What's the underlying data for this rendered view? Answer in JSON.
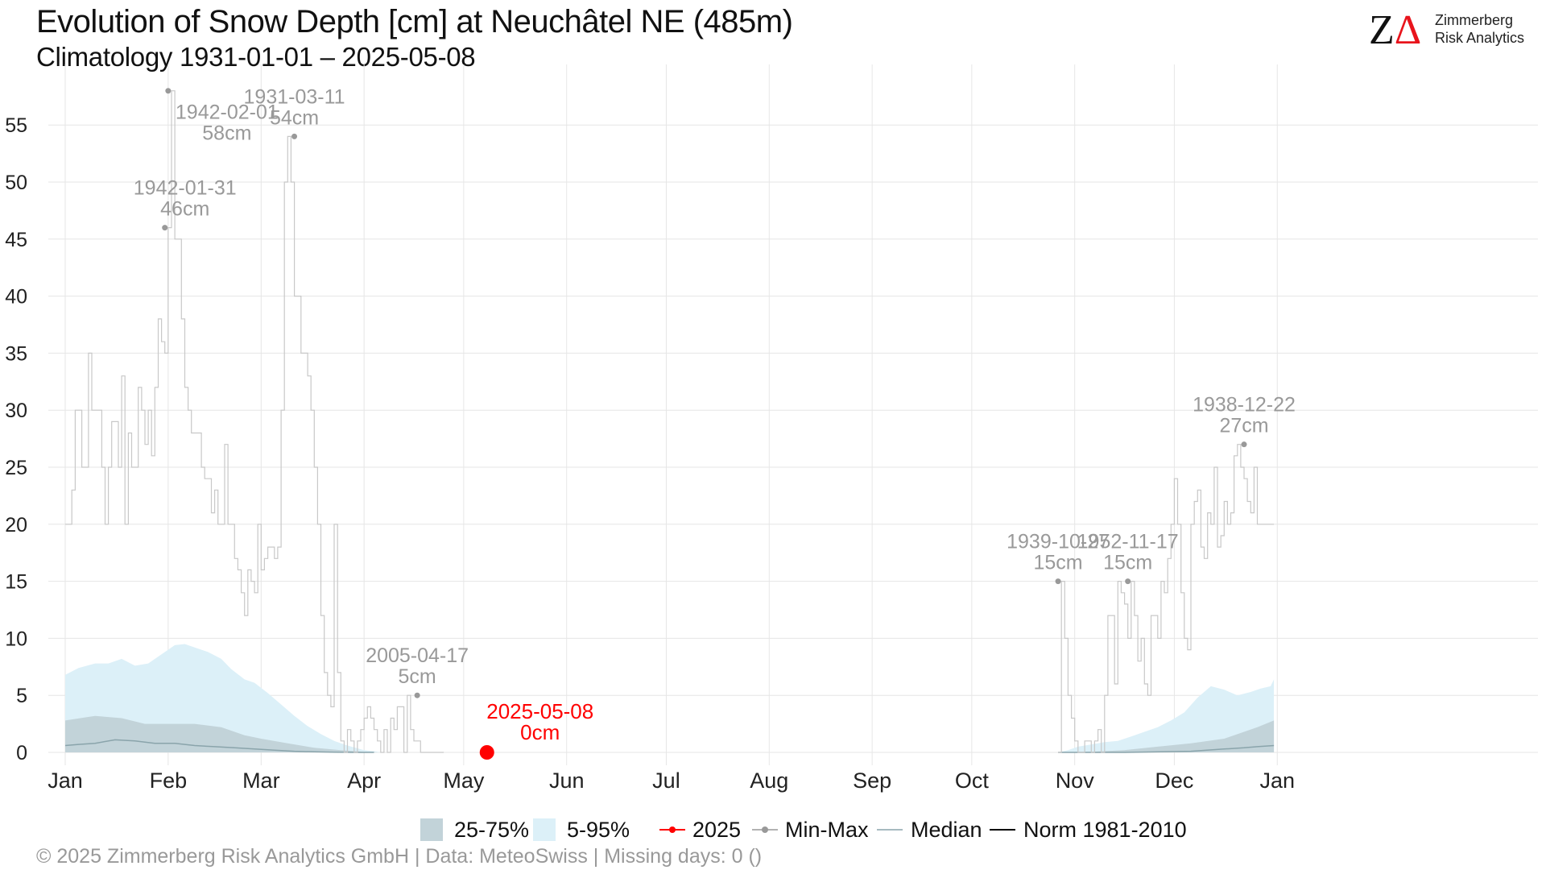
{
  "header": {
    "title": "Evolution of Snow Depth [cm] at Neuchâtel  NE (485m)",
    "subtitle": "Climatology 1931-01-01 – 2025-05-08"
  },
  "logo": {
    "mark_z": "Z",
    "mark_delta": "Δ",
    "line1": "Zimmerberg",
    "line2": "Risk Analytics"
  },
  "legend": {
    "iqr": "25-75%",
    "p5_95": "5-95%",
    "current_year": "2025",
    "minmax": "Min-Max",
    "median": "Median",
    "norm": "Norm 1981-2010"
  },
  "footer": "©  2025 Zimmerberg Risk Analytics GmbH | Data: MeteoSwiss | Missing days: 0 ()",
  "colors": {
    "iqr": "#c2d3d9",
    "p5_95": "#dcf0f8",
    "current": "#ff0000",
    "minmax": "#c8c8c8",
    "median": "#8aa4ab",
    "norm": "#000000",
    "annotation": "#999999",
    "grid": "#e6e6e6",
    "logo_accent": "#e8141c"
  },
  "chart_data": {
    "type": "line",
    "title": "Evolution of Snow Depth [cm] at Neuchâtel  NE (485m)",
    "subtitle": "Climatology 1931-01-01 – 2025-05-08",
    "xlabel": "",
    "ylabel": "",
    "x_unit": "day of year",
    "xlim": [
      1,
      366
    ],
    "ylim": [
      0,
      58
    ],
    "yticks": [
      0,
      5,
      10,
      15,
      20,
      25,
      30,
      35,
      40,
      45,
      50,
      55
    ],
    "xticks": [
      {
        "label": "Jan",
        "day": 1
      },
      {
        "label": "Feb",
        "day": 32
      },
      {
        "label": "Mar",
        "day": 60
      },
      {
        "label": "Apr",
        "day": 91
      },
      {
        "label": "May",
        "day": 121
      },
      {
        "label": "Jun",
        "day": 152
      },
      {
        "label": "Jul",
        "day": 182
      },
      {
        "label": "Aug",
        "day": 213
      },
      {
        "label": "Sep",
        "day": 244
      },
      {
        "label": "Oct",
        "day": 274
      },
      {
        "label": "Nov",
        "day": 305
      },
      {
        "label": "Dec",
        "day": 335
      },
      {
        "label": "Jan",
        "day": 366
      }
    ],
    "grid": true,
    "legend_position": "bottom",
    "series": [
      {
        "name": "Min-Max",
        "kind": "step",
        "x": [
          1,
          3,
          4,
          6,
          8,
          9,
          10,
          12,
          13,
          14,
          15,
          17,
          18,
          19,
          20,
          21,
          22,
          23,
          24,
          25,
          26,
          27,
          28,
          29,
          30,
          31,
          32,
          33,
          34,
          35,
          36,
          37,
          38,
          39,
          40,
          41,
          42,
          43,
          45,
          46,
          47,
          48,
          49,
          50,
          51,
          52,
          53,
          54,
          55,
          56,
          57,
          58,
          59,
          60,
          61,
          62,
          63,
          64,
          65,
          66,
          67,
          68,
          69,
          70,
          72,
          74,
          75,
          76,
          77,
          78,
          79,
          80,
          81,
          82,
          83,
          84,
          85,
          86,
          87,
          88,
          89,
          90,
          91,
          92,
          93,
          94,
          95,
          96,
          97,
          98,
          99,
          100,
          101,
          102,
          103,
          104,
          105,
          106,
          107,
          108,
          109,
          110,
          111,
          112,
          113,
          114,
          115
        ],
        "y": [
          20,
          23,
          30,
          25,
          35,
          30,
          30,
          25,
          20,
          25,
          29,
          25,
          33,
          20,
          28,
          25,
          25,
          32,
          30,
          27,
          30,
          26,
          32,
          38,
          36,
          35,
          46,
          58,
          45,
          45,
          38,
          32,
          30,
          28,
          28,
          28,
          25,
          24,
          21,
          23,
          20,
          20,
          27,
          20,
          20,
          17,
          16,
          14,
          12,
          16,
          15,
          14,
          20,
          16,
          17,
          18,
          18,
          17,
          18,
          30,
          50,
          54,
          50,
          40,
          35,
          33,
          30,
          25,
          20,
          12,
          7,
          5,
          4,
          20,
          7,
          1,
          0,
          2,
          1,
          0,
          1,
          2,
          3,
          4,
          3,
          2,
          1,
          0,
          2,
          0,
          3,
          2,
          4,
          4,
          0,
          5,
          2,
          1,
          1,
          0,
          0,
          0,
          0,
          0,
          0,
          0,
          0
        ]
      },
      {
        "name": "Min-Max",
        "kind": "step",
        "x": [
          300,
          301,
          302,
          303,
          304,
          305,
          306,
          307,
          308,
          309,
          310,
          311,
          312,
          313,
          314,
          315,
          316,
          317,
          318,
          319,
          320,
          321,
          322,
          323,
          324,
          325,
          326,
          327,
          328,
          329,
          330,
          331,
          332,
          333,
          334,
          335,
          336,
          337,
          338,
          339,
          340,
          341,
          342,
          343,
          344,
          345,
          346,
          347,
          348,
          349,
          350,
          351,
          352,
          353,
          354,
          355,
          356,
          357,
          358,
          359,
          360,
          361,
          362,
          363,
          364,
          365
        ],
        "y": [
          0,
          15,
          10,
          5,
          3,
          1,
          0,
          0,
          1,
          1,
          0,
          1,
          2,
          0,
          5,
          12,
          12,
          6,
          15,
          14,
          13,
          10,
          15,
          12,
          8,
          10,
          6,
          5,
          12,
          12,
          10,
          15,
          14,
          17,
          20,
          24,
          20,
          14,
          10,
          9,
          20,
          22,
          23,
          18,
          17,
          21,
          20,
          25,
          18,
          19,
          22,
          20,
          21,
          26,
          27,
          25,
          24,
          22,
          21,
          25,
          20,
          20,
          20,
          20,
          20,
          20
        ]
      },
      {
        "name": "25-75%",
        "kind": "band",
        "x": [
          1,
          10,
          18,
          25,
          32,
          40,
          48,
          55,
          60,
          68,
          76,
          84,
          91,
          96,
          300,
          310,
          320,
          330,
          340,
          350,
          360,
          365
        ],
        "lower": [
          0,
          0,
          0,
          0,
          0,
          0,
          0,
          0,
          0,
          0,
          0,
          0,
          0,
          0,
          0,
          0,
          0,
          0,
          0,
          0,
          0,
          0
        ],
        "upper": [
          2.8,
          3.2,
          3.0,
          2.5,
          2.5,
          2.5,
          2.2,
          1.5,
          1.2,
          0.8,
          0.4,
          0.2,
          0.05,
          0,
          0,
          0.05,
          0.2,
          0.5,
          0.8,
          1.2,
          2.2,
          2.8
        ]
      },
      {
        "name": "5-95%",
        "kind": "band",
        "x": [
          1,
          5,
          10,
          14,
          18,
          22,
          26,
          30,
          34,
          37,
          40,
          44,
          48,
          51,
          55,
          58,
          62,
          66,
          70,
          74,
          78,
          82,
          86,
          91,
          94,
          96,
          300,
          303,
          306,
          310,
          314,
          318,
          322,
          326,
          330,
          334,
          338,
          342,
          346,
          350,
          354,
          358,
          361,
          364,
          365
        ],
        "lower": [
          0,
          0,
          0,
          0,
          0,
          0,
          0,
          0,
          0,
          0,
          0,
          0,
          0,
          0,
          0,
          0,
          0,
          0,
          0,
          0,
          0,
          0,
          0,
          0,
          0,
          0,
          0,
          0,
          0,
          0,
          0,
          0,
          0,
          0,
          0,
          0,
          0,
          0,
          0,
          0,
          0,
          0,
          0,
          0,
          0
        ],
        "upper": [
          6.8,
          7.4,
          7.8,
          7.8,
          8.2,
          7.6,
          7.8,
          8.6,
          9.4,
          9.5,
          9.2,
          8.8,
          8.2,
          7.3,
          6.4,
          6.1,
          5.2,
          4.2,
          3.2,
          2.3,
          1.6,
          1.0,
          0.6,
          0.2,
          0.1,
          0,
          0,
          0.2,
          0.5,
          0.7,
          0.9,
          1.0,
          1.4,
          1.8,
          2.2,
          2.8,
          3.5,
          4.8,
          5.8,
          5.5,
          5.0,
          5.3,
          5.6,
          5.8,
          6.4
        ]
      },
      {
        "name": "Median",
        "kind": "line",
        "x": [
          1,
          5,
          10,
          16,
          22,
          28,
          34,
          40,
          46,
          52,
          58,
          64,
          70,
          76,
          82,
          88,
          94,
          300,
          320,
          340,
          350,
          356,
          360,
          365
        ],
        "y": [
          0.6,
          0.7,
          0.8,
          1.1,
          1.0,
          0.8,
          0.8,
          0.6,
          0.5,
          0.4,
          0.3,
          0.2,
          0.1,
          0.05,
          0.02,
          0,
          0,
          0,
          0,
          0.1,
          0.3,
          0.4,
          0.5,
          0.6
        ]
      },
      {
        "name": "Norm 1981-2010",
        "kind": "line",
        "x": [
          1,
          366
        ],
        "y": [
          0,
          0
        ]
      },
      {
        "name": "2025",
        "kind": "line",
        "x": [
          1,
          128
        ],
        "y": [
          0,
          0
        ]
      }
    ],
    "annotations": [
      {
        "date": "1942-02-01",
        "value": "58cm",
        "x": 32,
        "y": 58
      },
      {
        "date": "1931-03-11",
        "value": "54cm",
        "x": 70,
        "y": 54
      },
      {
        "date": "1942-01-31",
        "value": "46cm",
        "x": 31,
        "y": 46
      },
      {
        "date": "2005-04-17",
        "value": "5cm",
        "x": 107,
        "y": 5
      },
      {
        "date": "1939-10-27",
        "value": "15cm",
        "x": 300,
        "y": 15
      },
      {
        "date": "1952-11-17",
        "value": "15cm",
        "x": 321,
        "y": 15
      },
      {
        "date": "1938-12-22",
        "value": "27cm",
        "x": 356,
        "y": 27
      },
      {
        "date": "2025-05-08",
        "value": "0cm",
        "x": 128,
        "y": 0,
        "highlight": true
      }
    ]
  }
}
